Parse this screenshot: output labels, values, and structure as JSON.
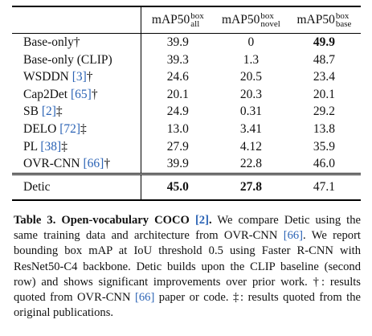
{
  "table": {
    "header": [
      {
        "base": "mAP50",
        "sup": "box",
        "sub": "all"
      },
      {
        "base": "mAP50",
        "sup": "box",
        "sub": "novel"
      },
      {
        "base": "mAP50",
        "sup": "box",
        "sub": "base"
      }
    ],
    "rows": [
      {
        "name": "Base-only",
        "note": "†",
        "values": [
          "39.9",
          "0",
          "49.9"
        ],
        "bold": [
          2
        ]
      },
      {
        "name": "Base-only (CLIP)",
        "values": [
          "39.3",
          "1.3",
          "48.7"
        ]
      },
      {
        "name": "WSDDN",
        "ref": "[3]",
        "note": "†",
        "values": [
          "24.6",
          "20.5",
          "23.4"
        ]
      },
      {
        "name": "Cap2Det",
        "ref": "[65]",
        "note": "†",
        "values": [
          "20.1",
          "20.3",
          "20.1"
        ]
      },
      {
        "name": "SB",
        "ref": "[2]",
        "note": "‡",
        "values": [
          "24.9",
          "0.31",
          "29.2"
        ]
      },
      {
        "name": "DELO",
        "ref": "[72]",
        "note": "‡",
        "values": [
          "13.0",
          "3.41",
          "13.8"
        ]
      },
      {
        "name": "PL",
        "ref": "[38]",
        "note": "‡",
        "values": [
          "27.9",
          "4.12",
          "35.9"
        ]
      },
      {
        "name": "OVR-CNN",
        "ref": "[66]",
        "note": "†",
        "values": [
          "39.9",
          "22.8",
          "46.0"
        ]
      }
    ],
    "final_row": {
      "name": "Detic",
      "values": [
        "45.0",
        "27.8",
        "47.1"
      ],
      "bold": [
        0,
        1
      ]
    }
  },
  "caption": [
    {
      "text": "Table 3. Open-vocabulary COCO ",
      "style": "bold"
    },
    {
      "text": "[2]",
      "style": "bold-ref"
    },
    {
      "text": ".",
      "style": "bold"
    },
    {
      "text": " We compare Detic using the same training data and architecture from OVR-CNN ",
      "style": "plain"
    },
    {
      "text": "[66]",
      "style": "ref"
    },
    {
      "text": ". We report bounding box mAP at IoU threshold 0.5 using Faster R-CNN with ResNet50-C4 backbone. Detic builds upon the CLIP baseline (second row) and shows significant improvements over prior work. †: results quoted from OVR-CNN ",
      "style": "plain"
    },
    {
      "text": "[66]",
      "style": "ref"
    },
    {
      "text": " paper or code. ‡: results quoted from the original publications.",
      "style": "plain"
    }
  ]
}
